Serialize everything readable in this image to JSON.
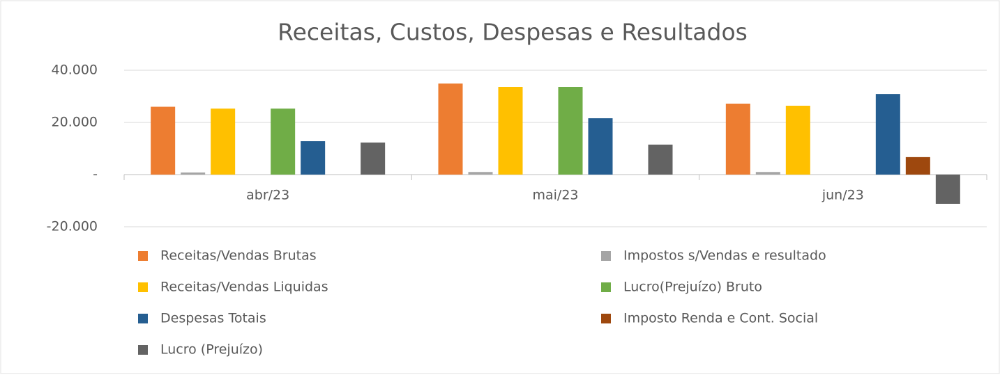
{
  "chart_data": {
    "type": "bar",
    "title": "Receitas, Custos, Despesas e Resultados",
    "categories": [
      "abr/23",
      "mai/23",
      "jun/23"
    ],
    "series": [
      {
        "name": "Receitas/Vendas Brutas",
        "color": "#ed7d31",
        "values": [
          26000,
          34900,
          27200
        ]
      },
      {
        "name": "Impostos s/Vendas e resultado",
        "color": "#a5a5a5",
        "values": [
          800,
          1000,
          1000
        ]
      },
      {
        "name": "Receitas/Vendas Liquidas",
        "color": "#ffc000",
        "values": [
          25300,
          33600,
          26400
        ]
      },
      {
        "name": "Lucro(Prejuízo) Bruto",
        "color": "#70ad47",
        "values": [
          25300,
          33600,
          0
        ]
      },
      {
        "name": "Despesas Totais",
        "color": "#255e91",
        "values": [
          12800,
          21600,
          30900
        ]
      },
      {
        "name": "Imposto Renda e Cont. Social",
        "color": "#9e480e",
        "values": [
          0,
          0,
          6700
        ]
      },
      {
        "name": "Lucro (Prejuízo)",
        "color": "#636363",
        "values": [
          12300,
          11500,
          -11200
        ]
      }
    ],
    "ylim": [
      -20000,
      40000
    ],
    "yticks": [
      {
        "value": -20000,
        "label": "-20.000"
      },
      {
        "value": 0,
        "label": "-"
      },
      {
        "value": 20000,
        "label": "20.000"
      },
      {
        "value": 40000,
        "label": "40.000"
      }
    ],
    "grid": true
  }
}
